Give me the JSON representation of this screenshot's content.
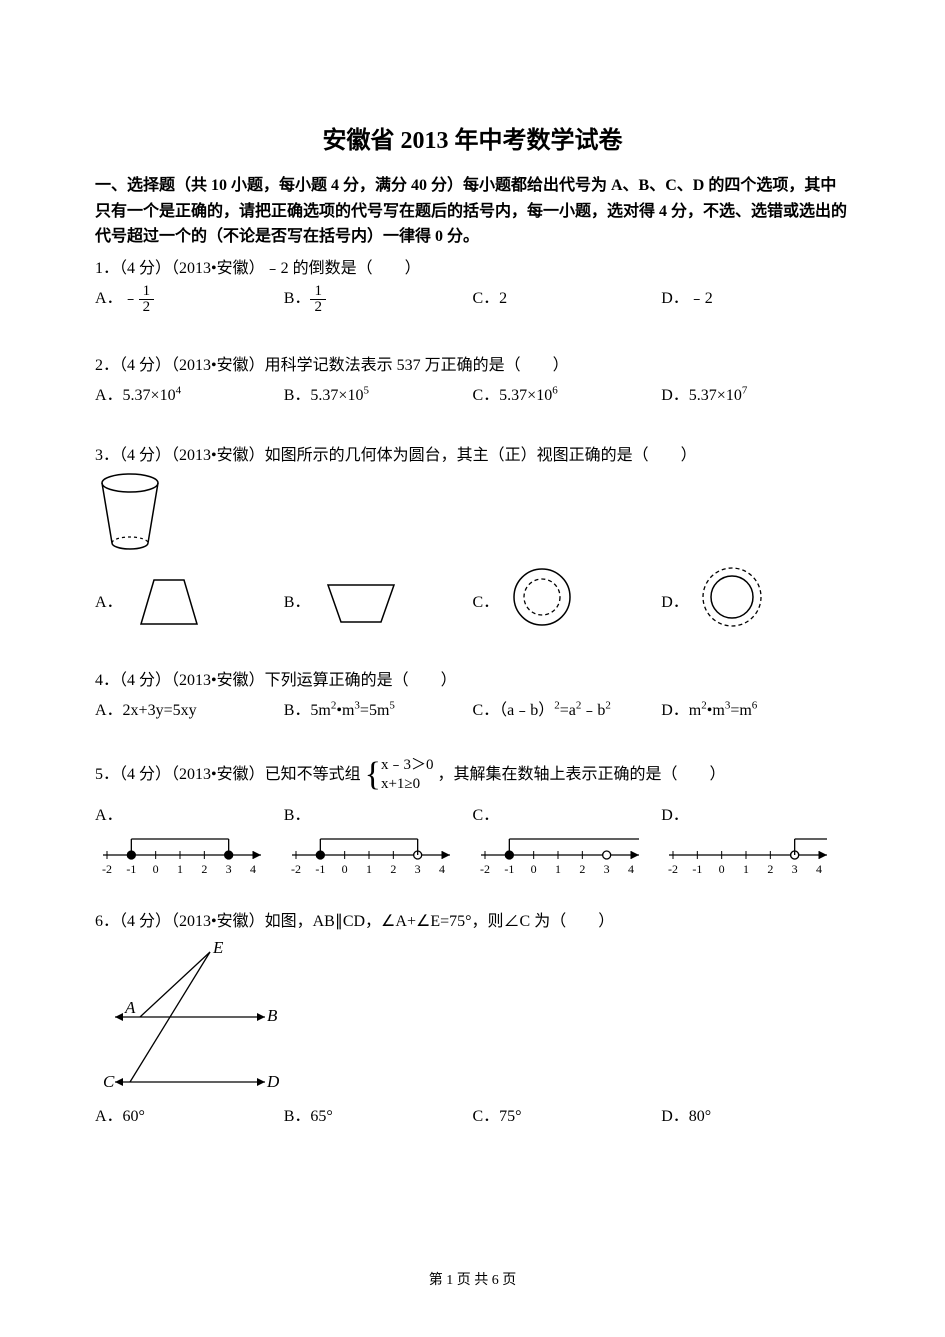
{
  "title": "安徽省 2013 年中考数学试卷",
  "section1_header": "一、选择题（共 10 小题，每小题 4 分，满分 40 分）每小题都给出代号为 A、B、C、D 的四个选项，其中只有一个是正确的，请把正确选项的代号写在题后的括号内，每一小题，选对得 4 分，不选、选错或选出的代号超过一个的（不论是否写在括号内）一律得 0 分。",
  "q1": {
    "text": "1．（4 分）（2013•安徽）﹣2 的倒数是（　　）",
    "A": "A．",
    "B": "B．",
    "C": "C．2",
    "D": "D．﹣2",
    "fracA_num": "1",
    "fracA_den": "2",
    "fracB_num": "1",
    "fracB_den": "2",
    "neg": "﹣"
  },
  "q2": {
    "text": "2．（4 分）（2013•安徽）用科学记数法表示 537 万正确的是（　　）",
    "A": "A．5.37×10",
    "Aexp": "4",
    "B": "B．5.37×10",
    "Bexp": "5",
    "C": "C．5.37×10",
    "Cexp": "6",
    "D": "D．5.37×10",
    "Dexp": "7"
  },
  "q3": {
    "text": "3．（4 分）（2013•安徽）如图所示的几何体为圆台，其主（正）视图正确的是（　　）",
    "A": "A．",
    "B": "B．",
    "C": "C．",
    "D": "D．"
  },
  "q4": {
    "text": "4．（4 分）（2013•安徽）下列运算正确的是（　　）",
    "A": "A．2x+3y=5xy",
    "B_pre": "B．5m",
    "B_e1": "2",
    "B_mid": "•m",
    "B_e2": "3",
    "B_post": "=5m",
    "B_e3": "5",
    "C_pre": "C．（a﹣b）",
    "C_e1": "2",
    "C_mid": "=a",
    "C_e2": "2",
    "C_post": "﹣b",
    "C_e3": "2",
    "D_pre": "D．m",
    "D_e1": "2",
    "D_mid": "•m",
    "D_e2": "3",
    "D_post": "=m",
    "D_e3": "6"
  },
  "q5": {
    "text_pre": "5．（4 分）（2013•安徽）已知不等式组",
    "eq1": "x﹣3＞0",
    "eq2": "x+1≥0",
    "text_post": "，其解集在数轴上表示正确的是（　　）",
    "A": "A．",
    "B": "B．",
    "C": "C．",
    "D": "D．",
    "ticks": [
      "-2",
      "-1",
      "0",
      "1",
      "2",
      "3",
      "4"
    ]
  },
  "q6": {
    "text": "6．（4 分）（2013•安徽）如图，AB∥CD，∠A+∠E=75°，则∠C 为（　　）",
    "A": "A．60°",
    "B": "B．65°",
    "C": "C．75°",
    "D": "D．80°",
    "ptE": "E",
    "ptA": "A",
    "ptB": "B",
    "ptC": "C",
    "ptD": "D"
  },
  "footer": "第 1 页 共 6 页",
  "colors": {
    "text": "#000000",
    "bg": "#ffffff",
    "stroke": "#000000"
  }
}
